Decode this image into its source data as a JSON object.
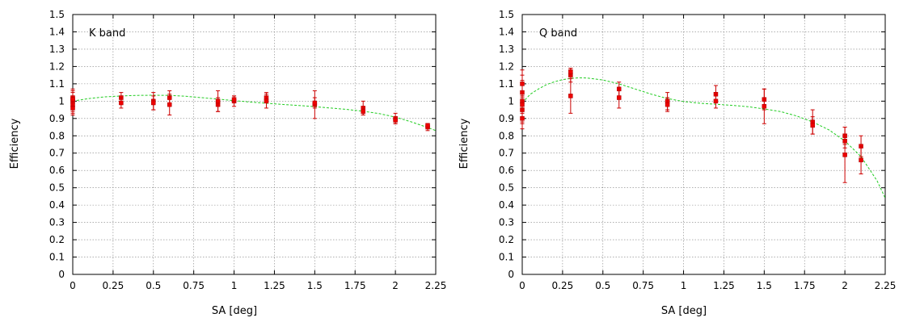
{
  "chart_data": [
    {
      "type": "scatter",
      "title": "K band",
      "xlabel": "SA [deg]",
      "ylabel": "Efficiency",
      "xlim": [
        0,
        2.25
      ],
      "ylim": [
        0,
        1.5
      ],
      "xticks": [
        "0",
        "0.25",
        "0.5",
        "0.75",
        "1",
        "1.25",
        "1.5",
        "1.75",
        "2",
        "2.25"
      ],
      "yticks": [
        "0",
        "0.1",
        "0.2",
        "0.3",
        "0.4",
        "0.5",
        "0.6",
        "0.7",
        "0.8",
        "0.9",
        "1",
        "1.1",
        "1.2",
        "1.3",
        "1.4",
        "1.5"
      ],
      "grid": true,
      "colors": {
        "points": "#ee0000",
        "fit": "#22cc22"
      },
      "points": [
        {
          "x": 0.0,
          "y": 1.0,
          "err": 0.06
        },
        {
          "x": 0.0,
          "y": 0.98,
          "err": 0.05
        },
        {
          "x": 0.0,
          "y": 1.02,
          "err": 0.05
        },
        {
          "x": 0.0,
          "y": 0.96,
          "err": 0.04
        },
        {
          "x": 0.0,
          "y": 1.01,
          "err": 0.04
        },
        {
          "x": 0.3,
          "y": 1.02,
          "err": 0.03
        },
        {
          "x": 0.3,
          "y": 0.99,
          "err": 0.03
        },
        {
          "x": 0.5,
          "y": 1.0,
          "err": 0.05
        },
        {
          "x": 0.5,
          "y": 0.99,
          "err": 0.04
        },
        {
          "x": 0.6,
          "y": 1.02,
          "err": 0.04
        },
        {
          "x": 0.6,
          "y": 0.98,
          "err": 0.06
        },
        {
          "x": 0.9,
          "y": 0.98,
          "err": 0.04
        },
        {
          "x": 0.9,
          "y": 1.0,
          "err": 0.06
        },
        {
          "x": 1.0,
          "y": 1.0,
          "err": 0.03
        },
        {
          "x": 1.0,
          "y": 1.01,
          "err": 0.02
        },
        {
          "x": 1.2,
          "y": 1.02,
          "err": 0.03
        },
        {
          "x": 1.2,
          "y": 1.0,
          "err": 0.04
        },
        {
          "x": 1.5,
          "y": 0.98,
          "err": 0.08
        },
        {
          "x": 1.5,
          "y": 0.99,
          "err": 0.03
        },
        {
          "x": 1.8,
          "y": 0.96,
          "err": 0.04
        },
        {
          "x": 1.8,
          "y": 0.94,
          "err": 0.02
        },
        {
          "x": 2.0,
          "y": 0.9,
          "err": 0.03
        },
        {
          "x": 2.0,
          "y": 0.89,
          "err": 0.02
        },
        {
          "x": 2.2,
          "y": 0.85,
          "err": 0.02
        },
        {
          "x": 2.2,
          "y": 0.86,
          "err": 0.01
        }
      ],
      "fit": [
        {
          "x": 0.0,
          "y": 1.0
        },
        {
          "x": 0.1,
          "y": 1.015
        },
        {
          "x": 0.2,
          "y": 1.025
        },
        {
          "x": 0.3,
          "y": 1.03
        },
        {
          "x": 0.4,
          "y": 1.033
        },
        {
          "x": 0.5,
          "y": 1.034
        },
        {
          "x": 0.6,
          "y": 1.033
        },
        {
          "x": 0.7,
          "y": 1.028
        },
        {
          "x": 0.8,
          "y": 1.02
        },
        {
          "x": 0.9,
          "y": 1.012
        },
        {
          "x": 1.0,
          "y": 1.003
        },
        {
          "x": 1.1,
          "y": 0.995
        },
        {
          "x": 1.2,
          "y": 0.988
        },
        {
          "x": 1.3,
          "y": 0.981
        },
        {
          "x": 1.4,
          "y": 0.975
        },
        {
          "x": 1.5,
          "y": 0.968
        },
        {
          "x": 1.6,
          "y": 0.96
        },
        {
          "x": 1.7,
          "y": 0.952
        },
        {
          "x": 1.8,
          "y": 0.942
        },
        {
          "x": 1.9,
          "y": 0.928
        },
        {
          "x": 2.0,
          "y": 0.908
        },
        {
          "x": 2.1,
          "y": 0.88
        },
        {
          "x": 2.2,
          "y": 0.848
        },
        {
          "x": 2.25,
          "y": 0.83
        }
      ]
    },
    {
      "type": "scatter",
      "title": "Q band",
      "xlabel": "SA [deg]",
      "ylabel": "Efficiency",
      "xlim": [
        0,
        2.25
      ],
      "ylim": [
        0,
        1.5
      ],
      "xticks": [
        "0",
        "0.25",
        "0.5",
        "0.75",
        "1",
        "1.25",
        "1.5",
        "1.75",
        "2",
        "2.25"
      ],
      "yticks": [
        "0",
        "0.1",
        "0.2",
        "0.3",
        "0.4",
        "0.5",
        "0.6",
        "0.7",
        "0.8",
        "0.9",
        "1",
        "1.1",
        "1.2",
        "1.3",
        "1.4",
        "1.5"
      ],
      "grid": true,
      "colors": {
        "points": "#ee0000",
        "fit": "#22cc22"
      },
      "points": [
        {
          "x": 0.0,
          "y": 1.05,
          "err": 0.1
        },
        {
          "x": 0.0,
          "y": 0.95,
          "err": 0.08
        },
        {
          "x": 0.0,
          "y": 1.0,
          "err": 0.12
        },
        {
          "x": 0.0,
          "y": 0.9,
          "err": 0.06
        },
        {
          "x": 0.0,
          "y": 1.1,
          "err": 0.08
        },
        {
          "x": 0.0,
          "y": 0.98,
          "err": 0.05
        },
        {
          "x": 0.3,
          "y": 1.15,
          "err": 0.04
        },
        {
          "x": 0.3,
          "y": 1.03,
          "err": 0.1
        },
        {
          "x": 0.3,
          "y": 1.17,
          "err": 0.02
        },
        {
          "x": 0.6,
          "y": 1.07,
          "err": 0.04
        },
        {
          "x": 0.6,
          "y": 1.02,
          "err": 0.06
        },
        {
          "x": 0.9,
          "y": 1.0,
          "err": 0.05
        },
        {
          "x": 0.9,
          "y": 0.98,
          "err": 0.04
        },
        {
          "x": 1.2,
          "y": 1.04,
          "err": 0.05
        },
        {
          "x": 1.2,
          "y": 1.0,
          "err": 0.04
        },
        {
          "x": 1.5,
          "y": 1.01,
          "err": 0.06
        },
        {
          "x": 1.5,
          "y": 0.97,
          "err": 0.1
        },
        {
          "x": 1.8,
          "y": 0.88,
          "err": 0.07
        },
        {
          "x": 1.8,
          "y": 0.86,
          "err": 0.05
        },
        {
          "x": 2.0,
          "y": 0.8,
          "err": 0.05
        },
        {
          "x": 2.0,
          "y": 0.77,
          "err": 0.04
        },
        {
          "x": 2.0,
          "y": 0.69,
          "err": 0.16
        },
        {
          "x": 2.1,
          "y": 0.74,
          "err": 0.06
        },
        {
          "x": 2.1,
          "y": 0.66,
          "err": 0.08
        }
      ],
      "fit": [
        {
          "x": 0.0,
          "y": 0.99
        },
        {
          "x": 0.05,
          "y": 1.04
        },
        {
          "x": 0.1,
          "y": 1.07
        },
        {
          "x": 0.15,
          "y": 1.095
        },
        {
          "x": 0.2,
          "y": 1.112
        },
        {
          "x": 0.25,
          "y": 1.124
        },
        {
          "x": 0.3,
          "y": 1.131
        },
        {
          "x": 0.35,
          "y": 1.135
        },
        {
          "x": 0.4,
          "y": 1.134
        },
        {
          "x": 0.5,
          "y": 1.122
        },
        {
          "x": 0.6,
          "y": 1.1
        },
        {
          "x": 0.7,
          "y": 1.07
        },
        {
          "x": 0.8,
          "y": 1.04
        },
        {
          "x": 0.9,
          "y": 1.015
        },
        {
          "x": 1.0,
          "y": 0.998
        },
        {
          "x": 1.1,
          "y": 0.988
        },
        {
          "x": 1.2,
          "y": 0.982
        },
        {
          "x": 1.3,
          "y": 0.976
        },
        {
          "x": 1.4,
          "y": 0.968
        },
        {
          "x": 1.5,
          "y": 0.955
        },
        {
          "x": 1.6,
          "y": 0.94
        },
        {
          "x": 1.7,
          "y": 0.915
        },
        {
          "x": 1.8,
          "y": 0.88
        },
        {
          "x": 1.9,
          "y": 0.835
        },
        {
          "x": 2.0,
          "y": 0.77
        },
        {
          "x": 2.1,
          "y": 0.68
        },
        {
          "x": 2.2,
          "y": 0.54
        },
        {
          "x": 2.25,
          "y": 0.44
        }
      ]
    }
  ]
}
